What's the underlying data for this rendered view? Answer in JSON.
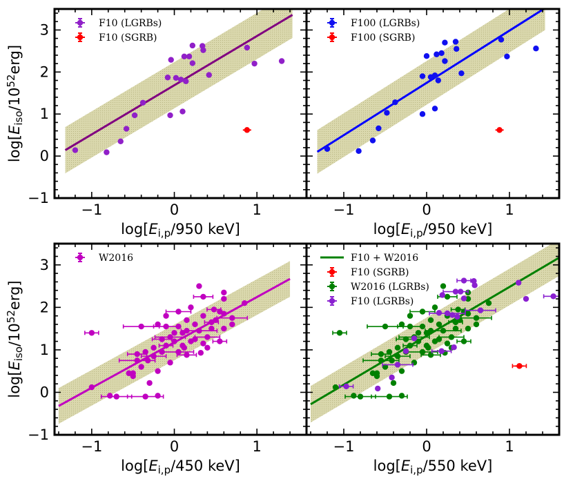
{
  "colors": {
    "band": "#d4d2a0",
    "band_hatch": "#a9a66a",
    "purple_fit": "#800080",
    "blue": "#0000ff",
    "magenta": "#c000c0",
    "green": "#008000",
    "red": "#ff0000",
    "violet": "#8a20d0"
  },
  "chart_data": [
    {
      "type": "scatter",
      "xlabel": "log[E_{i,p}/950 keV]",
      "ylabel": "log[E_iso/10^52 erg]",
      "xlim": [
        -1.45,
        1.6
      ],
      "ylim": [
        -1,
        3.5
      ],
      "xticks": [
        "−1",
        "0",
        "1"
      ],
      "yticks": [
        "−1",
        "0",
        "1",
        "2",
        "3"
      ],
      "legend_position": "top-left",
      "fit": {
        "x": [
          -1.32,
          1.43
        ],
        "y": [
          0.14,
          3.36
        ],
        "band": 0.55,
        "color": "#800080"
      },
      "series": [
        {
          "name": "F10 (LGRBs)",
          "color": "#9020c8",
          "points": [
            [
              -1.2,
              0.14
            ],
            [
              -0.82,
              0.09
            ],
            [
              -0.65,
              0.35
            ],
            [
              -0.58,
              0.65
            ],
            [
              -0.48,
              0.97
            ],
            [
              -0.38,
              1.27
            ],
            [
              -0.05,
              0.97
            ],
            [
              0.1,
              1.06
            ],
            [
              -0.08,
              1.87
            ],
            [
              0.02,
              1.86
            ],
            [
              0.08,
              1.82
            ],
            [
              0.14,
              1.78
            ],
            [
              0.12,
              2.37
            ],
            [
              0.18,
              2.37
            ],
            [
              0.22,
              2.21
            ],
            [
              0.22,
              2.63
            ],
            [
              0.34,
              2.62
            ],
            [
              0.35,
              2.52
            ],
            [
              0.42,
              1.93
            ],
            [
              0.88,
              2.58
            ],
            [
              0.97,
              2.2
            ],
            [
              1.3,
              2.26
            ],
            [
              -0.04,
              2.29
            ]
          ]
        },
        {
          "name": "F10 (SGRB)",
          "color": "#ff0000",
          "points": [
            [
              0.88,
              0.62
            ]
          ]
        }
      ]
    },
    {
      "type": "scatter",
      "xlabel": "log[E_{i,p}/950 keV]",
      "ylabel": "",
      "xlim": [
        -1.45,
        1.6
      ],
      "ylim": [
        -1,
        3.5
      ],
      "xticks": [
        "−1",
        "0",
        "1"
      ],
      "yticks": [],
      "legend_position": "top-left",
      "fit": {
        "x": [
          -1.32,
          1.43
        ],
        "y": [
          0.1,
          3.52
        ],
        "band": 0.52,
        "color": "#0000ff"
      },
      "series": [
        {
          "name": "F100 (LGRBs)",
          "color": "#1010f0",
          "points": [
            [
              -1.2,
              0.17
            ],
            [
              -0.82,
              0.12
            ],
            [
              -0.65,
              0.37
            ],
            [
              -0.58,
              0.66
            ],
            [
              -0.48,
              1.03
            ],
            [
              -0.38,
              1.28
            ],
            [
              -0.05,
              1.0
            ],
            [
              0.1,
              1.13
            ],
            [
              -0.05,
              1.9
            ],
            [
              0.05,
              1.88
            ],
            [
              0.1,
              1.92
            ],
            [
              0.14,
              1.8
            ],
            [
              0.12,
              2.42
            ],
            [
              0.18,
              2.45
            ],
            [
              0.22,
              2.26
            ],
            [
              0.0,
              2.38
            ],
            [
              0.35,
              2.72
            ],
            [
              0.36,
              2.55
            ],
            [
              0.42,
              1.97
            ],
            [
              0.9,
              2.77
            ],
            [
              0.97,
              2.37
            ],
            [
              1.32,
              2.56
            ],
            [
              0.22,
              2.7
            ]
          ]
        },
        {
          "name": "F100 (SGRB)",
          "color": "#ff0000",
          "points": [
            [
              0.88,
              0.62
            ]
          ]
        }
      ]
    },
    {
      "type": "scatter",
      "xlabel": "log[E_{i,p}/450 keV]",
      "ylabel": "log[E_iso/10^52 erg]",
      "xlim": [
        -1.45,
        1.6
      ],
      "ylim": [
        -1,
        3.5
      ],
      "xticks": [
        "−1",
        "0",
        "1"
      ],
      "yticks": [
        "−1",
        "0",
        "1",
        "2",
        "3"
      ],
      "legend_position": "top-left",
      "fit": {
        "x": [
          -1.4,
          1.4
        ],
        "y": [
          -0.32,
          2.67
        ],
        "band": 0.42,
        "color": "#c000c0"
      },
      "series": [
        {
          "name": "W2016",
          "color": "#c000c0",
          "points": [
            [
              -1.0,
              1.4
            ],
            [
              -1.0,
              0.12
            ],
            [
              -0.78,
              -0.08
            ],
            [
              -0.7,
              -0.1
            ],
            [
              -0.55,
              0.45
            ],
            [
              -0.5,
              0.38
            ],
            [
              -0.45,
              0.9
            ],
            [
              -0.3,
              0.22
            ],
            [
              -0.2,
              -0.08
            ],
            [
              -0.35,
              -0.1
            ],
            [
              -0.4,
              0.6
            ],
            [
              -0.32,
              0.75
            ],
            [
              -0.25,
              0.85
            ],
            [
              -0.2,
              0.5
            ],
            [
              -0.15,
              0.95
            ],
            [
              -0.1,
              1.1
            ],
            [
              -0.05,
              0.7
            ],
            [
              0.0,
              1.2
            ],
            [
              0.05,
              0.95
            ],
            [
              0.1,
              1.4
            ],
            [
              0.12,
              1.05
            ],
            [
              0.15,
              0.88
            ],
            [
              0.2,
              1.2
            ],
            [
              0.25,
              1.6
            ],
            [
              0.3,
              1.45
            ],
            [
              0.32,
              0.93
            ],
            [
              0.35,
              1.15
            ],
            [
              0.4,
              1.3
            ],
            [
              0.45,
              1.5
            ],
            [
              0.5,
              1.7
            ],
            [
              0.55,
              1.2
            ],
            [
              0.6,
              1.85
            ],
            [
              0.6,
              1.5
            ],
            [
              0.7,
              1.75
            ],
            [
              0.85,
              2.1
            ],
            [
              0.3,
              2.5
            ],
            [
              0.35,
              2.25
            ],
            [
              0.6,
              2.35
            ],
            [
              0.6,
              2.2
            ],
            [
              -0.4,
              1.55
            ],
            [
              -0.2,
              1.6
            ],
            [
              -0.1,
              1.8
            ],
            [
              0.05,
              1.9
            ],
            [
              0.15,
              1.7
            ],
            [
              0.2,
              2.0
            ],
            [
              0.45,
              1.65
            ],
            [
              0.55,
              1.9
            ],
            [
              0.0,
              1.4
            ],
            [
              -0.05,
              1.3
            ],
            [
              0.1,
              1.1
            ],
            [
              0.25,
              1.25
            ],
            [
              -0.15,
              1.25
            ],
            [
              -0.25,
              1.05
            ],
            [
              -0.35,
              0.95
            ],
            [
              -0.45,
              0.75
            ],
            [
              0.4,
              1.05
            ],
            [
              0.7,
              1.6
            ],
            [
              -0.1,
              1.55
            ],
            [
              0.05,
              1.55
            ],
            [
              0.35,
              1.8
            ],
            [
              0.48,
              1.95
            ],
            [
              -0.5,
              0.45
            ],
            [
              0.15,
              1.45
            ]
          ]
        }
      ]
    },
    {
      "type": "scatter",
      "xlabel": "log[E_{i,p}/550 keV]",
      "ylabel": "",
      "xlim": [
        -1.45,
        1.6
      ],
      "ylim": [
        -1,
        3.5
      ],
      "xticks": [
        "−1",
        "0",
        "1"
      ],
      "yticks": [],
      "legend_position": "top-left",
      "fit": {
        "name": "F10 + W2016",
        "x": [
          -1.4,
          1.6
        ],
        "y": [
          -0.28,
          3.17
        ],
        "band": 0.43,
        "color": "#008000"
      },
      "series": [
        {
          "name": "F10 (SGRB)",
          "color": "#ff0000",
          "points": [
            [
              1.12,
              0.62
            ]
          ]
        },
        {
          "name": "W2016 (LGRBs)",
          "color": "#008000",
          "points": [
            [
              -1.05,
              1.4
            ],
            [
              -1.1,
              0.12
            ],
            [
              -0.88,
              -0.08
            ],
            [
              -0.8,
              -0.1
            ],
            [
              -0.65,
              0.45
            ],
            [
              -0.6,
              0.38
            ],
            [
              -0.55,
              0.9
            ],
            [
              -0.4,
              0.22
            ],
            [
              -0.3,
              -0.08
            ],
            [
              -0.45,
              -0.1
            ],
            [
              -0.5,
              0.6
            ],
            [
              -0.42,
              0.75
            ],
            [
              -0.35,
              0.85
            ],
            [
              -0.3,
              0.5
            ],
            [
              -0.25,
              0.95
            ],
            [
              -0.2,
              1.1
            ],
            [
              -0.15,
              0.7
            ],
            [
              -0.1,
              1.2
            ],
            [
              -0.05,
              0.95
            ],
            [
              0.0,
              1.4
            ],
            [
              0.02,
              1.05
            ],
            [
              0.05,
              0.88
            ],
            [
              0.1,
              1.2
            ],
            [
              0.15,
              1.6
            ],
            [
              0.2,
              1.45
            ],
            [
              0.22,
              0.93
            ],
            [
              0.25,
              1.15
            ],
            [
              0.3,
              1.3
            ],
            [
              0.35,
              1.5
            ],
            [
              0.4,
              1.7
            ],
            [
              0.45,
              1.2
            ],
            [
              0.5,
              1.85
            ],
            [
              0.5,
              1.5
            ],
            [
              0.6,
              1.75
            ],
            [
              0.75,
              2.1
            ],
            [
              0.2,
              2.5
            ],
            [
              0.25,
              2.25
            ],
            [
              0.5,
              2.35
            ],
            [
              0.5,
              2.2
            ],
            [
              -0.5,
              1.55
            ],
            [
              -0.3,
              1.6
            ],
            [
              -0.2,
              1.8
            ],
            [
              -0.05,
              1.9
            ],
            [
              0.05,
              1.7
            ],
            [
              0.1,
              2.0
            ],
            [
              0.35,
              1.65
            ],
            [
              0.45,
              1.9
            ],
            [
              -0.1,
              1.4
            ],
            [
              -0.15,
              1.3
            ],
            [
              0.0,
              1.1
            ],
            [
              0.15,
              1.25
            ],
            [
              -0.25,
              1.25
            ],
            [
              -0.35,
              1.05
            ],
            [
              -0.45,
              0.95
            ],
            [
              -0.55,
              0.75
            ],
            [
              0.3,
              1.05
            ],
            [
              0.6,
              1.6
            ],
            [
              -0.2,
              1.55
            ],
            [
              -0.05,
              1.55
            ],
            [
              0.25,
              1.8
            ],
            [
              0.38,
              1.95
            ],
            [
              -0.6,
              0.45
            ],
            [
              0.05,
              1.45
            ]
          ]
        },
        {
          "name": "F10 (LGRBs)",
          "color": "#8a20d0",
          "points": [
            [
              -0.97,
              0.14
            ],
            [
              -0.59,
              0.09
            ],
            [
              -0.42,
              0.35
            ],
            [
              -0.35,
              0.65
            ],
            [
              -0.25,
              0.97
            ],
            [
              -0.15,
              1.27
            ],
            [
              0.18,
              0.97
            ],
            [
              0.33,
              1.06
            ],
            [
              0.15,
              1.87
            ],
            [
              0.25,
              1.86
            ],
            [
              0.31,
              1.82
            ],
            [
              0.37,
              1.78
            ],
            [
              0.35,
              2.37
            ],
            [
              0.41,
              2.37
            ],
            [
              0.45,
              2.21
            ],
            [
              0.45,
              2.63
            ],
            [
              0.57,
              2.62
            ],
            [
              0.58,
              2.52
            ],
            [
              0.65,
              1.93
            ],
            [
              1.11,
              2.58
            ],
            [
              1.2,
              2.2
            ],
            [
              1.53,
              2.26
            ],
            [
              0.19,
              2.29
            ]
          ]
        }
      ]
    }
  ]
}
